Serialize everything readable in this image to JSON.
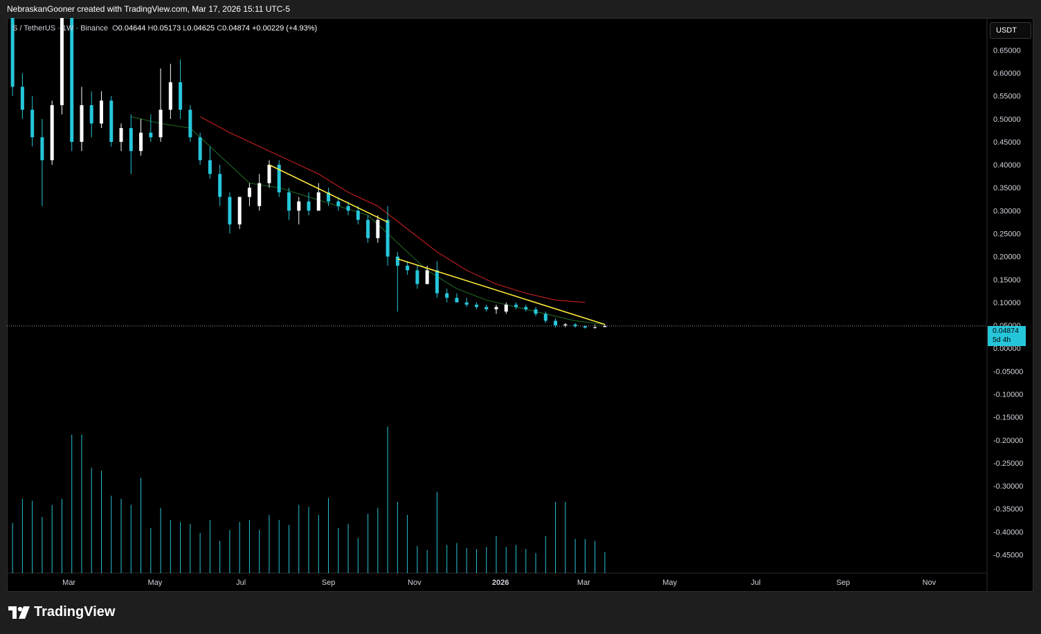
{
  "header": {
    "credit": "NebraskanGooner created with TradingView.com, Mar 17, 2026 15:11 UTC-5"
  },
  "legend": {
    "symbol": "S / TetherUS · 1W · Binance",
    "o_label": "O",
    "o_value": "0.04644",
    "h_label": "H",
    "h_value": "0.05173",
    "l_label": "L",
    "l_value": "0.04625",
    "c_label": "C",
    "c_value": "0.04874",
    "change": "+0.00229 (+4.93%)"
  },
  "currency_button": "USDT",
  "last_price": {
    "price": "0.04874",
    "countdown": "5d 4h"
  },
  "brand": {
    "name": "TradingView"
  },
  "colors": {
    "up": "#ffffff",
    "down": "#26c6da",
    "ma_fast": "#1b5e20",
    "ma_slow": "#b71c1c",
    "trendline": "#ffeb3b",
    "volume": "#26c6da",
    "last_price_tag": "#26c6da"
  },
  "chart_data": {
    "type": "candlestick",
    "interval": "1W",
    "y_ticks": [
      "0.65000",
      "0.60000",
      "0.55000",
      "0.50000",
      "0.45000",
      "0.40000",
      "0.35000",
      "0.30000",
      "0.25000",
      "0.20000",
      "0.15000",
      "0.10000",
      "0.05000",
      "0.00000",
      "-0.05000",
      "-0.10000",
      "-0.15000",
      "-0.20000",
      "-0.25000",
      "-0.30000",
      "-0.35000",
      "-0.40000",
      "-0.45000"
    ],
    "x_ticks": [
      {
        "label": "Mar",
        "date": "2025-03-01"
      },
      {
        "label": "May",
        "date": "2025-05-01"
      },
      {
        "label": "Jul",
        "date": "2025-07-01"
      },
      {
        "label": "Sep",
        "date": "2025-09-01"
      },
      {
        "label": "Nov",
        "date": "2025-11-01"
      },
      {
        "label": "2026",
        "date": "2026-01-01"
      },
      {
        "label": "Mar",
        "date": "2026-03-01"
      },
      {
        "label": "May",
        "date": "2026-05-01"
      },
      {
        "label": "Jul",
        "date": "2026-07-01"
      },
      {
        "label": "Sep",
        "date": "2026-09-01"
      },
      {
        "label": "Nov",
        "date": "2026-11-01"
      }
    ],
    "x_range": [
      "2025-01-16",
      "2026-12-12"
    ],
    "y_range": [
      -0.49,
      0.72
    ],
    "candles": [
      {
        "t": "2025-01-20",
        "o": 0.72,
        "h": 0.74,
        "l": 0.55,
        "c": 0.57
      },
      {
        "t": "2025-01-27",
        "o": 0.57,
        "h": 0.6,
        "l": 0.5,
        "c": 0.52
      },
      {
        "t": "2025-02-03",
        "o": 0.52,
        "h": 0.55,
        "l": 0.44,
        "c": 0.46
      },
      {
        "t": "2025-02-10",
        "o": 0.46,
        "h": 0.5,
        "l": 0.31,
        "c": 0.41
      },
      {
        "t": "2025-02-17",
        "o": 0.41,
        "h": 0.54,
        "l": 0.4,
        "c": 0.53
      },
      {
        "t": "2025-02-24",
        "o": 0.53,
        "h": 0.78,
        "l": 0.51,
        "c": 0.76
      },
      {
        "t": "2025-03-03",
        "o": 0.76,
        "h": 0.85,
        "l": 0.43,
        "c": 0.45
      },
      {
        "t": "2025-03-10",
        "o": 0.45,
        "h": 0.57,
        "l": 0.43,
        "c": 0.53
      },
      {
        "t": "2025-03-17",
        "o": 0.53,
        "h": 0.56,
        "l": 0.46,
        "c": 0.49
      },
      {
        "t": "2025-03-24",
        "o": 0.49,
        "h": 0.56,
        "l": 0.48,
        "c": 0.54
      },
      {
        "t": "2025-03-31",
        "o": 0.54,
        "h": 0.55,
        "l": 0.44,
        "c": 0.45
      },
      {
        "t": "2025-04-07",
        "o": 0.45,
        "h": 0.49,
        "l": 0.43,
        "c": 0.48
      },
      {
        "t": "2025-04-14",
        "o": 0.48,
        "h": 0.51,
        "l": 0.38,
        "c": 0.43
      },
      {
        "t": "2025-04-21",
        "o": 0.43,
        "h": 0.5,
        "l": 0.42,
        "c": 0.47
      },
      {
        "t": "2025-04-28",
        "o": 0.47,
        "h": 0.51,
        "l": 0.45,
        "c": 0.46
      },
      {
        "t": "2025-05-05",
        "o": 0.46,
        "h": 0.61,
        "l": 0.45,
        "c": 0.52
      },
      {
        "t": "2025-05-12",
        "o": 0.52,
        "h": 0.62,
        "l": 0.5,
        "c": 0.58
      },
      {
        "t": "2025-05-19",
        "o": 0.58,
        "h": 0.63,
        "l": 0.5,
        "c": 0.52
      },
      {
        "t": "2025-05-26",
        "o": 0.52,
        "h": 0.53,
        "l": 0.45,
        "c": 0.46
      },
      {
        "t": "2025-06-02",
        "o": 0.46,
        "h": 0.47,
        "l": 0.4,
        "c": 0.41
      },
      {
        "t": "2025-06-09",
        "o": 0.41,
        "h": 0.44,
        "l": 0.37,
        "c": 0.38
      },
      {
        "t": "2025-06-16",
        "o": 0.38,
        "h": 0.4,
        "l": 0.31,
        "c": 0.33
      },
      {
        "t": "2025-06-23",
        "o": 0.33,
        "h": 0.34,
        "l": 0.25,
        "c": 0.27
      },
      {
        "t": "2025-06-30",
        "o": 0.27,
        "h": 0.33,
        "l": 0.26,
        "c": 0.33
      },
      {
        "t": "2025-07-07",
        "o": 0.33,
        "h": 0.36,
        "l": 0.31,
        "c": 0.35
      },
      {
        "t": "2025-07-14",
        "o": 0.31,
        "h": 0.38,
        "l": 0.3,
        "c": 0.36
      },
      {
        "t": "2025-07-21",
        "o": 0.36,
        "h": 0.41,
        "l": 0.35,
        "c": 0.4
      },
      {
        "t": "2025-07-28",
        "o": 0.4,
        "h": 0.41,
        "l": 0.33,
        "c": 0.34
      },
      {
        "t": "2025-08-04",
        "o": 0.34,
        "h": 0.35,
        "l": 0.28,
        "c": 0.3
      },
      {
        "t": "2025-08-11",
        "o": 0.3,
        "h": 0.33,
        "l": 0.27,
        "c": 0.32
      },
      {
        "t": "2025-08-18",
        "o": 0.32,
        "h": 0.34,
        "l": 0.29,
        "c": 0.3
      },
      {
        "t": "2025-08-25",
        "o": 0.3,
        "h": 0.36,
        "l": 0.3,
        "c": 0.34
      },
      {
        "t": "2025-09-01",
        "o": 0.34,
        "h": 0.35,
        "l": 0.31,
        "c": 0.32
      },
      {
        "t": "2025-09-08",
        "o": 0.32,
        "h": 0.33,
        "l": 0.3,
        "c": 0.31
      },
      {
        "t": "2025-09-15",
        "o": 0.31,
        "h": 0.32,
        "l": 0.29,
        "c": 0.3
      },
      {
        "t": "2025-09-22",
        "o": 0.3,
        "h": 0.31,
        "l": 0.27,
        "c": 0.28
      },
      {
        "t": "2025-09-29",
        "o": 0.28,
        "h": 0.29,
        "l": 0.23,
        "c": 0.24
      },
      {
        "t": "2025-10-06",
        "o": 0.24,
        "h": 0.29,
        "l": 0.23,
        "c": 0.28
      },
      {
        "t": "2025-10-13",
        "o": 0.28,
        "h": 0.31,
        "l": 0.18,
        "c": 0.2
      },
      {
        "t": "2025-10-20",
        "o": 0.2,
        "h": 0.21,
        "l": 0.08,
        "c": 0.18
      },
      {
        "t": "2025-10-27",
        "o": 0.18,
        "h": 0.19,
        "l": 0.16,
        "c": 0.17
      },
      {
        "t": "2025-11-03",
        "o": 0.17,
        "h": 0.18,
        "l": 0.13,
        "c": 0.14
      },
      {
        "t": "2025-11-10",
        "o": 0.14,
        "h": 0.18,
        "l": 0.14,
        "c": 0.17
      },
      {
        "t": "2025-11-17",
        "o": 0.17,
        "h": 0.19,
        "l": 0.11,
        "c": 0.12
      },
      {
        "t": "2025-11-24",
        "o": 0.12,
        "h": 0.13,
        "l": 0.1,
        "c": 0.11
      },
      {
        "t": "2025-12-01",
        "o": 0.11,
        "h": 0.12,
        "l": 0.1,
        "c": 0.1
      },
      {
        "t": "2025-12-08",
        "o": 0.1,
        "h": 0.11,
        "l": 0.09,
        "c": 0.095
      },
      {
        "t": "2025-12-15",
        "o": 0.095,
        "h": 0.1,
        "l": 0.085,
        "c": 0.09
      },
      {
        "t": "2025-12-22",
        "o": 0.09,
        "h": 0.095,
        "l": 0.08,
        "c": 0.085
      },
      {
        "t": "2025-12-29",
        "o": 0.085,
        "h": 0.095,
        "l": 0.075,
        "c": 0.09
      },
      {
        "t": "2026-01-05",
        "o": 0.08,
        "h": 0.1,
        "l": 0.075,
        "c": 0.095
      },
      {
        "t": "2026-01-12",
        "o": 0.095,
        "h": 0.1,
        "l": 0.085,
        "c": 0.09
      },
      {
        "t": "2026-01-19",
        "o": 0.09,
        "h": 0.095,
        "l": 0.08,
        "c": 0.085
      },
      {
        "t": "2026-01-26",
        "o": 0.085,
        "h": 0.09,
        "l": 0.07,
        "c": 0.075
      },
      {
        "t": "2026-02-02",
        "o": 0.075,
        "h": 0.08,
        "l": 0.055,
        "c": 0.06
      },
      {
        "t": "2026-02-09",
        "o": 0.06,
        "h": 0.065,
        "l": 0.045,
        "c": 0.05
      },
      {
        "t": "2026-02-16",
        "o": 0.05,
        "h": 0.055,
        "l": 0.046,
        "c": 0.052
      },
      {
        "t": "2026-02-23",
        "o": 0.052,
        "h": 0.055,
        "l": 0.045,
        "c": 0.048
      },
      {
        "t": "2026-03-02",
        "o": 0.048,
        "h": 0.05,
        "l": 0.043,
        "c": 0.045
      },
      {
        "t": "2026-03-09",
        "o": 0.045,
        "h": 0.052,
        "l": 0.043,
        "c": 0.046
      },
      {
        "t": "2026-03-16",
        "o": 0.04644,
        "h": 0.05173,
        "l": 0.04625,
        "c": 0.04874
      }
    ],
    "ma_fast": [
      {
        "t": "2025-04-14",
        "v": 0.505
      },
      {
        "t": "2025-05-05",
        "v": 0.49
      },
      {
        "t": "2025-05-26",
        "v": 0.48
      },
      {
        "t": "2025-06-16",
        "v": 0.42
      },
      {
        "t": "2025-07-07",
        "v": 0.36
      },
      {
        "t": "2025-07-28",
        "v": 0.35
      },
      {
        "t": "2025-08-18",
        "v": 0.33
      },
      {
        "t": "2025-09-08",
        "v": 0.31
      },
      {
        "t": "2025-09-29",
        "v": 0.29
      },
      {
        "t": "2025-10-20",
        "v": 0.23
      },
      {
        "t": "2025-11-10",
        "v": 0.17
      },
      {
        "t": "2025-12-01",
        "v": 0.13
      },
      {
        "t": "2025-12-22",
        "v": 0.105
      },
      {
        "t": "2026-01-12",
        "v": 0.09
      },
      {
        "t": "2026-02-02",
        "v": 0.075
      },
      {
        "t": "2026-02-23",
        "v": 0.06
      },
      {
        "t": "2026-03-16",
        "v": 0.052
      }
    ],
    "ma_slow": [
      {
        "t": "2025-06-02",
        "v": 0.505
      },
      {
        "t": "2025-06-23",
        "v": 0.47
      },
      {
        "t": "2025-07-14",
        "v": 0.44
      },
      {
        "t": "2025-08-04",
        "v": 0.41
      },
      {
        "t": "2025-08-25",
        "v": 0.38
      },
      {
        "t": "2025-09-15",
        "v": 0.34
      },
      {
        "t": "2025-10-06",
        "v": 0.31
      },
      {
        "t": "2025-10-27",
        "v": 0.26
      },
      {
        "t": "2025-11-17",
        "v": 0.21
      },
      {
        "t": "2025-12-08",
        "v": 0.17
      },
      {
        "t": "2025-12-29",
        "v": 0.14
      },
      {
        "t": "2026-01-19",
        "v": 0.12
      },
      {
        "t": "2026-02-09",
        "v": 0.105
      },
      {
        "t": "2026-03-02",
        "v": 0.1
      }
    ],
    "trendlines": [
      {
        "t1": "2025-07-21",
        "v1": 0.4,
        "t2": "2025-10-13",
        "v2": 0.275
      },
      {
        "t1": "2025-10-20",
        "v1": 0.195,
        "t2": "2026-03-16",
        "v2": 0.052
      }
    ],
    "volume": [
      0.5,
      0.74,
      0.72,
      0.56,
      0.68,
      0.74,
      1.38,
      1.38,
      1.05,
      1.02,
      0.77,
      0.74,
      0.68,
      0.95,
      0.45,
      0.65,
      0.53,
      0.51,
      0.49,
      0.4,
      0.53,
      0.32,
      0.43,
      0.51,
      0.53,
      0.43,
      0.58,
      0.53,
      0.48,
      0.68,
      0.66,
      0.58,
      0.75,
      0.45,
      0.49,
      0.35,
      0.59,
      0.65,
      1.46,
      0.71,
      0.58,
      0.27,
      0.23,
      0.81,
      0.28,
      0.3,
      0.25,
      0.24,
      0.26,
      0.37,
      0.26,
      0.28,
      0.24,
      0.2,
      0.37,
      0.71,
      0.71,
      0.34,
      0.34,
      0.32,
      0.21
    ]
  }
}
